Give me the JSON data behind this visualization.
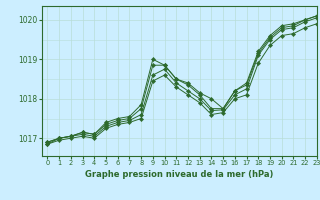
{
  "xlabel": "Graphe pression niveau de la mer (hPa)",
  "bg_color": "#cceeff",
  "grid_color": "#b8ddd8",
  "line_color": "#2d6a2d",
  "xlim": [
    -0.5,
    23
  ],
  "ylim": [
    1016.55,
    1020.35
  ],
  "yticks": [
    1017,
    1018,
    1019,
    1020
  ],
  "xticks": [
    0,
    1,
    2,
    3,
    4,
    5,
    6,
    7,
    8,
    9,
    10,
    11,
    12,
    13,
    14,
    15,
    16,
    17,
    18,
    19,
    20,
    21,
    22,
    23
  ],
  "series": [
    [
      1016.9,
      1017.0,
      1017.05,
      1017.15,
      1017.1,
      1017.4,
      1017.5,
      1017.55,
      1017.85,
      1019.0,
      1018.85,
      1018.5,
      1018.4,
      1018.15,
      1018.0,
      1017.75,
      1018.2,
      1018.4,
      1019.2,
      1019.6,
      1019.85,
      1019.9,
      1020.0,
      1020.1
    ],
    [
      1016.9,
      1017.0,
      1017.05,
      1017.15,
      1017.1,
      1017.35,
      1017.45,
      1017.5,
      1017.75,
      1018.85,
      1018.85,
      1018.5,
      1018.35,
      1018.1,
      1017.75,
      1017.75,
      1018.2,
      1018.35,
      1019.15,
      1019.55,
      1019.8,
      1019.85,
      1020.0,
      1020.1
    ],
    [
      1016.85,
      1017.0,
      1017.05,
      1017.1,
      1017.05,
      1017.3,
      1017.4,
      1017.45,
      1017.6,
      1018.6,
      1018.75,
      1018.4,
      1018.2,
      1018.0,
      1017.7,
      1017.72,
      1018.1,
      1018.25,
      1019.1,
      1019.5,
      1019.75,
      1019.8,
      1019.95,
      1020.05
    ],
    [
      1016.85,
      1016.95,
      1017.0,
      1017.05,
      1017.0,
      1017.25,
      1017.35,
      1017.4,
      1017.5,
      1018.45,
      1018.6,
      1018.3,
      1018.1,
      1017.9,
      1017.6,
      1017.65,
      1018.0,
      1018.1,
      1018.9,
      1019.35,
      1019.6,
      1019.65,
      1019.8,
      1019.9
    ]
  ]
}
